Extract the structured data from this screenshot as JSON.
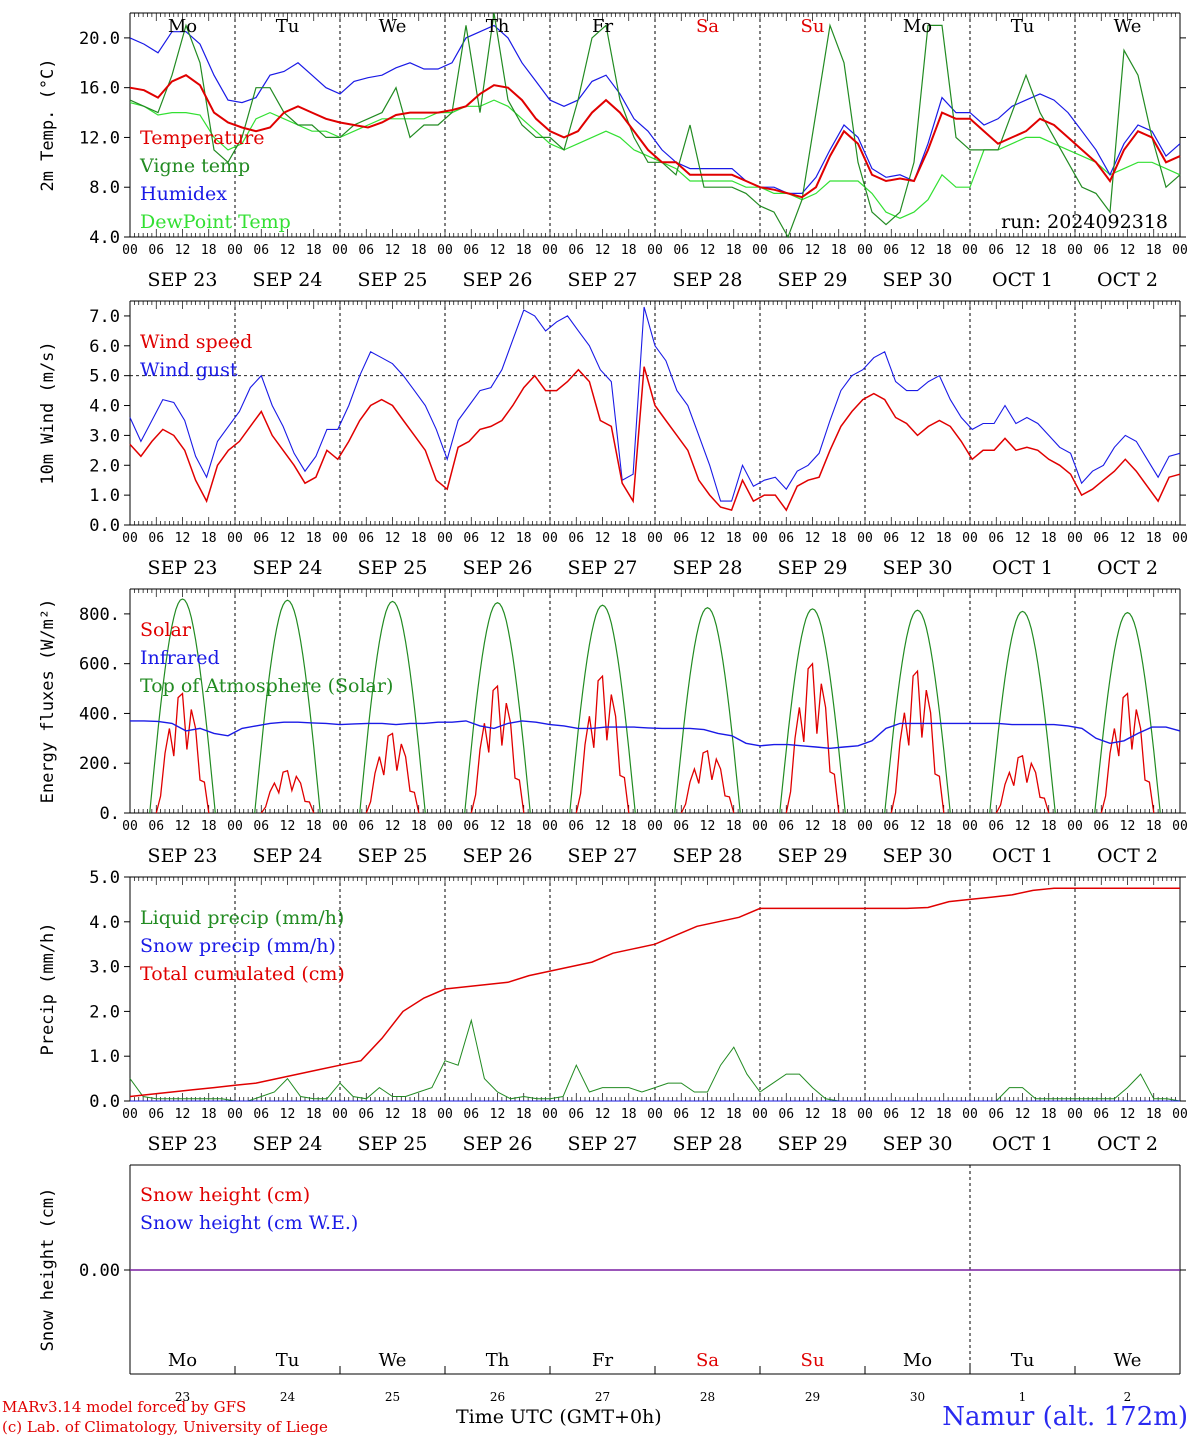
{
  "run_label": "run: 2024092318",
  "footer": {
    "model": "MARv3.14 model forced by GFS",
    "lab": "(c) Lab. of Climatology, University of Liege",
    "time_axis": "Time UTC (GMT+0h)",
    "station": "Namur (alt. 172m)"
  },
  "days": [
    {
      "dow": "Mo",
      "date": "SEP 23",
      "num": "23",
      "weekend": false
    },
    {
      "dow": "Tu",
      "date": "SEP 24",
      "num": "24",
      "weekend": false
    },
    {
      "dow": "We",
      "date": "SEP 25",
      "num": "25",
      "weekend": false
    },
    {
      "dow": "Th",
      "date": "SEP 26",
      "num": "26",
      "weekend": false
    },
    {
      "dow": "Fr",
      "date": "SEP 27",
      "num": "27",
      "weekend": false
    },
    {
      "dow": "Sa",
      "date": "SEP 28",
      "num": "28",
      "weekend": true
    },
    {
      "dow": "Su",
      "date": "SEP 29",
      "num": "29",
      "weekend": true
    },
    {
      "dow": "Mo",
      "date": "SEP 30",
      "num": "30",
      "weekend": false
    },
    {
      "dow": "Tu",
      "date": "OCT  1",
      "num": "1",
      "weekend": false
    },
    {
      "dow": "We",
      "date": "OCT  2",
      "num": "2",
      "weekend": false
    }
  ],
  "hour_ticks": [
    "00",
    "06",
    "12",
    "18"
  ],
  "colors": {
    "red": "#e00000",
    "green": "#228b22",
    "blue": "#1a1ae6",
    "lightgreen": "#33e033",
    "purple": "#7a1fa2"
  },
  "chart_data": [
    {
      "type": "line",
      "ylabel": "2m Temp. (°C)",
      "ylim": [
        4,
        22
      ],
      "yticks": [
        4,
        8,
        12,
        16,
        20
      ],
      "ytick_labels": [
        "4.0",
        "8.0",
        "12.0",
        "16.0",
        "20.0"
      ],
      "x_unit": "hours since SEP 23 00 UTC (3-hourly points, 0-240)",
      "series": [
        {
          "name": "Temperature",
          "color": "red",
          "values": [
            16,
            15.8,
            15.2,
            16.5,
            17,
            16.2,
            14,
            13.2,
            12.8,
            12.5,
            12.8,
            14,
            14.5,
            14,
            13.5,
            13.2,
            13,
            12.8,
            13.2,
            13.8,
            14,
            14,
            14,
            14.2,
            14.5,
            15.5,
            16.2,
            16,
            15,
            13.5,
            12.5,
            12,
            12.5,
            14,
            15,
            14,
            12.5,
            11,
            10,
            10,
            9,
            9,
            9,
            9,
            8.5,
            8,
            7.8,
            7.5,
            7.2,
            8,
            10.5,
            12.5,
            11.5,
            9,
            8.5,
            8.7,
            8.5,
            11,
            14,
            13.5,
            13.5,
            12.5,
            11.5,
            12,
            12.5,
            13.5,
            13,
            12,
            11,
            10,
            8.5,
            11,
            12.5,
            12,
            10,
            10.5
          ]
        },
        {
          "name": "Vigne temp",
          "color": "green",
          "values": [
            15,
            14.5,
            14,
            17,
            21,
            18,
            11,
            10,
            12,
            16,
            16,
            14,
            13,
            13,
            12,
            12,
            13,
            13.5,
            14,
            16,
            12,
            13,
            13,
            14,
            21,
            14,
            22,
            15,
            13,
            12,
            12,
            11,
            15,
            20,
            21,
            15,
            12,
            10,
            10,
            9,
            13,
            8,
            8,
            8,
            7.5,
            6.5,
            6,
            4,
            7,
            14,
            21,
            18,
            10,
            6,
            5,
            6,
            10,
            21,
            21,
            12,
            11,
            11,
            11,
            14,
            17,
            14,
            12,
            10,
            8,
            7.5,
            6,
            19,
            17,
            12,
            8,
            9
          ]
        },
        {
          "name": "Humidex",
          "color": "blue",
          "values": [
            20,
            19.5,
            18.8,
            20.5,
            20.5,
            19.5,
            17,
            15,
            14.8,
            15.2,
            17,
            17.3,
            18,
            17,
            16,
            15.5,
            16.5,
            16.8,
            17,
            17.6,
            18,
            17.5,
            17.5,
            18,
            20,
            20.5,
            21,
            20,
            18,
            16.5,
            15,
            14.5,
            15,
            16.5,
            17,
            15.5,
            13.5,
            12.5,
            11,
            10,
            9.5,
            9.5,
            9.5,
            9.5,
            8.5,
            8,
            8,
            7.5,
            7.5,
            8.8,
            11,
            13,
            12,
            9.5,
            8.8,
            9,
            8.5,
            11.5,
            15.2,
            14,
            14,
            13,
            13.5,
            14.5,
            15,
            15.5,
            15,
            14,
            12.5,
            11,
            9,
            11.5,
            13,
            12.5,
            10.5,
            11.5
          ]
        },
        {
          "name": "DewPoint Temp",
          "color": "lightgreen",
          "values": [
            14.8,
            14.5,
            13.8,
            14,
            14,
            13.8,
            12,
            11,
            11.5,
            13.5,
            14,
            13.5,
            13,
            12.5,
            12.5,
            12,
            12.5,
            13,
            13.5,
            13.5,
            13.5,
            13.5,
            14,
            14,
            14.5,
            14.5,
            15,
            14.5,
            13.5,
            12.5,
            11.5,
            11,
            11.5,
            12,
            12.5,
            12,
            11,
            10.5,
            10,
            9.5,
            8.5,
            8.5,
            8.5,
            8.5,
            8,
            8,
            7.5,
            7.5,
            7,
            7.5,
            8.5,
            8.5,
            8.5,
            7.5,
            6,
            5.5,
            6,
            7,
            9,
            8,
            8,
            11,
            11,
            11.5,
            12,
            12,
            11.5,
            11,
            10.5,
            10,
            9,
            9.5,
            10,
            10,
            9.5,
            9
          ]
        }
      ]
    },
    {
      "type": "line",
      "ylabel": "10m Wind (m/s)",
      "ylim": [
        0,
        7.5
      ],
      "yticks": [
        0,
        1,
        2,
        3,
        4,
        5,
        6,
        7
      ],
      "ytick_labels": [
        "0.0",
        "1.0",
        "2.0",
        "3.0",
        "4.0",
        "5.0",
        "6.0",
        "7.0"
      ],
      "reference_line": 5,
      "series": [
        {
          "name": "Wind speed",
          "color": "red",
          "values": [
            2.7,
            2.3,
            2.8,
            3.2,
            3,
            2.5,
            1.5,
            0.8,
            2,
            2.5,
            2.8,
            3.3,
            3.8,
            3,
            2.5,
            2,
            1.4,
            1.6,
            2.5,
            2.2,
            2.8,
            3.5,
            4,
            4.2,
            4,
            3.5,
            3,
            2.5,
            1.5,
            1.2,
            2.6,
            2.8,
            3.2,
            3.3,
            3.5,
            4,
            4.6,
            5,
            4.5,
            4.5,
            4.8,
            5.2,
            4.8,
            3.5,
            3.3,
            1.4,
            0.8,
            5.3,
            4,
            3.5,
            3,
            2.5,
            1.5,
            1,
            0.6,
            0.5,
            1.5,
            0.8,
            1,
            1,
            0.5,
            1.3,
            1.5,
            1.6,
            2.5,
            3.3,
            3.8,
            4.2,
            4.4,
            4.2,
            3.6,
            3.4,
            3,
            3.3,
            3.5,
            3.3,
            2.8,
            2.2,
            2.5,
            2.5,
            2.9,
            2.5,
            2.6,
            2.5,
            2.2,
            2,
            1.7,
            1,
            1.2,
            1.5,
            1.8,
            2.2,
            1.8,
            1.3,
            0.8,
            1.6,
            1.7
          ]
        },
        {
          "name": "Wind gust",
          "color": "blue",
          "values": [
            3.6,
            2.8,
            3.5,
            4.2,
            4.1,
            3.5,
            2.3,
            1.6,
            2.8,
            3.3,
            3.8,
            4.6,
            5,
            4,
            3.3,
            2.4,
            1.8,
            2.3,
            3.2,
            3.2,
            4,
            5,
            5.8,
            5.6,
            5.4,
            5,
            4.5,
            4,
            3.2,
            2.2,
            3.5,
            4,
            4.5,
            4.6,
            5.2,
            6.2,
            7.2,
            7,
            6.5,
            6.8,
            7,
            6.5,
            6,
            5.2,
            4.8,
            1.5,
            1.7,
            7.3,
            6,
            5.5,
            4.5,
            4,
            3,
            2,
            0.8,
            0.8,
            2,
            1.3,
            1.5,
            1.6,
            1.2,
            1.8,
            2,
            2.4,
            3.5,
            4.5,
            5,
            5.2,
            5.6,
            5.8,
            4.8,
            4.5,
            4.5,
            4.8,
            5,
            4.2,
            3.6,
            3.2,
            3.4,
            3.4,
            4,
            3.4,
            3.6,
            3.4,
            3,
            2.6,
            2.4,
            1.4,
            1.8,
            2,
            2.6,
            3,
            2.8,
            2.2,
            1.6,
            2.3,
            2.4
          ]
        }
      ]
    },
    {
      "type": "line",
      "ylabel": "Energy fluxes (W/m²)",
      "ylim": [
        0,
        900
      ],
      "yticks": [
        0,
        200,
        400,
        600,
        800
      ],
      "ytick_labels": [
        "0.",
        "200.",
        "400.",
        "600.",
        "800."
      ],
      "series": [
        {
          "name": "Solar",
          "color": "red",
          "peaks": [
            480,
            170,
            320,
            510,
            550,
            250,
            600,
            570,
            230,
            480
          ]
        },
        {
          "name": "Infrared",
          "color": "blue",
          "values": [
            370,
            370,
            368,
            360,
            330,
            340,
            320,
            310,
            340,
            350,
            360,
            365,
            365,
            362,
            360,
            355,
            358,
            360,
            360,
            355,
            360,
            360,
            365,
            365,
            370,
            350,
            340,
            360,
            370,
            365,
            355,
            350,
            340,
            340,
            345,
            345,
            345,
            342,
            340,
            340,
            340,
            335,
            320,
            310,
            280,
            270,
            275,
            275,
            270,
            265,
            260,
            265,
            270,
            290,
            340,
            360,
            360,
            360,
            360,
            360,
            360,
            360,
            360,
            355,
            355,
            355,
            355,
            350,
            340,
            300,
            280,
            290,
            320,
            345,
            345,
            330
          ]
        },
        {
          "name": "Top of Atmosphere (Solar)",
          "color": "green",
          "peaks": [
            860,
            855,
            850,
            845,
            835,
            825,
            820,
            815,
            810,
            805
          ]
        }
      ]
    },
    {
      "type": "line",
      "ylabel": "Precip (mm/h)",
      "ylim": [
        0,
        5
      ],
      "yticks": [
        0,
        1,
        2,
        3,
        4,
        5
      ],
      "ytick_labels": [
        "0.0",
        "1.0",
        "2.0",
        "3.0",
        "4.0",
        "5.0"
      ],
      "series": [
        {
          "name": "Liquid precip (mm/h)",
          "color": "green",
          "values": [
            0.5,
            0.1,
            0.05,
            0.05,
            0.05,
            0.05,
            0.05,
            0.05,
            0,
            0,
            0.1,
            0.2,
            0.5,
            0.1,
            0.05,
            0.05,
            0.4,
            0.1,
            0.05,
            0.3,
            0.1,
            0.1,
            0.2,
            0.3,
            0.9,
            0.8,
            1.8,
            0.5,
            0.2,
            0.05,
            0.1,
            0.05,
            0.05,
            0.1,
            0.8,
            0.2,
            0.3,
            0.3,
            0.3,
            0.2,
            0.3,
            0.4,
            0.4,
            0.2,
            0.2,
            0.8,
            1.2,
            0.6,
            0.2,
            0.4,
            0.6,
            0.6,
            0.3,
            0.05,
            0,
            0,
            0,
            0,
            0,
            0,
            0,
            0,
            0,
            0,
            0,
            0,
            0,
            0.3,
            0.3,
            0.05,
            0.05,
            0.05,
            0.05,
            0.05,
            0.05,
            0.05,
            0.3,
            0.6,
            0.05,
            0.05,
            0
          ]
        },
        {
          "name": "Snow precip (mm/h)",
          "color": "blue",
          "values": [
            0,
            0
          ]
        },
        {
          "name": "Total cumulated (cm)",
          "color": "red",
          "values": [
            0.1,
            0.15,
            0.2,
            0.25,
            0.3,
            0.35,
            0.4,
            0.5,
            0.6,
            0.7,
            0.8,
            0.9,
            1.4,
            2.0,
            2.3,
            2.5,
            2.55,
            2.6,
            2.65,
            2.8,
            2.9,
            3.0,
            3.1,
            3.3,
            3.4,
            3.5,
            3.7,
            3.9,
            4.0,
            4.1,
            4.3,
            4.3,
            4.3,
            4.3,
            4.3,
            4.3,
            4.3,
            4.3,
            4.32,
            4.45,
            4.5,
            4.55,
            4.6,
            4.7,
            4.75,
            4.75,
            4.75,
            4.75,
            4.75,
            4.75,
            4.75
          ]
        }
      ]
    },
    {
      "type": "line",
      "ylabel": "Snow height (cm)",
      "ytick_labels": [
        "0.00"
      ],
      "series": [
        {
          "name": "Snow height (cm)",
          "color": "red",
          "values": [
            0,
            0
          ]
        },
        {
          "name": "Snow height (cm W.E.)",
          "color": "blue",
          "values": [
            0,
            0
          ]
        }
      ]
    }
  ]
}
